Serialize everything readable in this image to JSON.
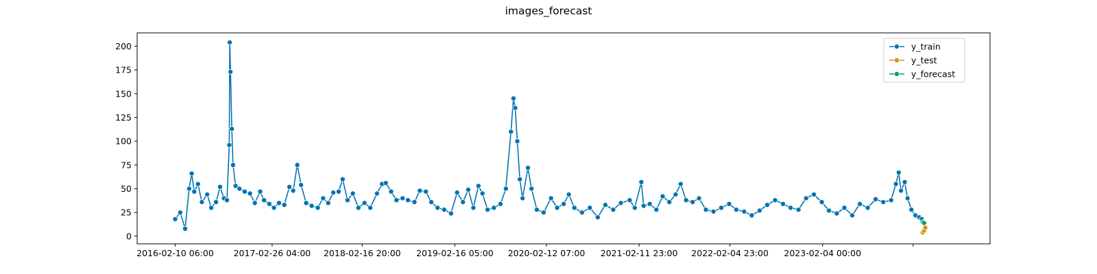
{
  "chart_data": {
    "type": "line",
    "title": "images_forecast",
    "xlabel": "",
    "ylabel": "",
    "ylim": [
      -8,
      214
    ],
    "xlim": [
      "2015-09-13",
      "2024-11-25"
    ],
    "grid": false,
    "legend_position": "top-right",
    "x_tick_labels": [
      {
        "label": "2016-02-10 06:00",
        "date": "2016-02-10"
      },
      {
        "label": "2017-02-26 04:00",
        "date": "2017-02-26"
      },
      {
        "label": "2018-02-16 20:00",
        "date": "2018-02-16"
      },
      {
        "label": "2019-02-16 05:00",
        "date": "2019-02-16"
      },
      {
        "label": "2020-02-12 07:00",
        "date": "2020-02-12"
      },
      {
        "label": "2021-02-11 23:00",
        "date": "2021-02-11"
      },
      {
        "label": "2022-02-04 23:00",
        "date": "2022-02-04"
      },
      {
        "label": "2023-02-04 00:00",
        "date": "2023-02-04"
      },
      {
        "label": "",
        "date": "2024-01-27"
      }
    ],
    "y_ticks": [
      0,
      25,
      50,
      75,
      100,
      125,
      150,
      175,
      200
    ],
    "series": [
      {
        "name": "y_train",
        "color": "#0173b2",
        "points": [
          [
            "2016-02-10",
            18
          ],
          [
            "2016-03-01",
            25
          ],
          [
            "2016-03-20",
            8
          ],
          [
            "2016-04-05",
            50
          ],
          [
            "2016-04-15",
            66
          ],
          [
            "2016-04-25",
            47
          ],
          [
            "2016-05-10",
            55
          ],
          [
            "2016-05-25",
            36
          ],
          [
            "2016-06-15",
            44
          ],
          [
            "2016-07-01",
            30
          ],
          [
            "2016-07-20",
            36
          ],
          [
            "2016-08-05",
            52
          ],
          [
            "2016-08-20",
            40
          ],
          [
            "2016-09-01",
            38
          ],
          [
            "2016-09-10",
            96
          ],
          [
            "2016-09-12",
            204
          ],
          [
            "2016-09-15",
            173
          ],
          [
            "2016-09-20",
            113
          ],
          [
            "2016-09-25",
            75
          ],
          [
            "2016-10-05",
            53
          ],
          [
            "2016-10-20",
            50
          ],
          [
            "2016-11-10",
            47
          ],
          [
            "2016-12-01",
            45
          ],
          [
            "2016-12-20",
            35
          ],
          [
            "2017-01-10",
            47
          ],
          [
            "2017-01-25",
            38
          ],
          [
            "2017-02-15",
            34
          ],
          [
            "2017-03-05",
            30
          ],
          [
            "2017-03-25",
            35
          ],
          [
            "2017-04-15",
            33
          ],
          [
            "2017-05-05",
            52
          ],
          [
            "2017-05-20",
            48
          ],
          [
            "2017-06-05",
            75
          ],
          [
            "2017-06-20",
            54
          ],
          [
            "2017-07-10",
            35
          ],
          [
            "2017-08-01",
            32
          ],
          [
            "2017-08-25",
            30
          ],
          [
            "2017-09-15",
            40
          ],
          [
            "2017-10-05",
            35
          ],
          [
            "2017-10-25",
            46
          ],
          [
            "2017-11-15",
            47
          ],
          [
            "2017-12-01",
            60
          ],
          [
            "2017-12-20",
            38
          ],
          [
            "2018-01-10",
            45
          ],
          [
            "2018-02-01",
            30
          ],
          [
            "2018-02-25",
            35
          ],
          [
            "2018-03-20",
            30
          ],
          [
            "2018-04-15",
            45
          ],
          [
            "2018-05-05",
            55
          ],
          [
            "2018-05-20",
            56
          ],
          [
            "2018-06-10",
            47
          ],
          [
            "2018-07-01",
            38
          ],
          [
            "2018-07-25",
            40
          ],
          [
            "2018-08-15",
            38
          ],
          [
            "2018-09-10",
            36
          ],
          [
            "2018-10-01",
            48
          ],
          [
            "2018-10-25",
            47
          ],
          [
            "2018-11-15",
            36
          ],
          [
            "2018-12-10",
            30
          ],
          [
            "2019-01-05",
            28
          ],
          [
            "2019-02-01",
            24
          ],
          [
            "2019-02-25",
            46
          ],
          [
            "2019-03-20",
            36
          ],
          [
            "2019-04-10",
            49
          ],
          [
            "2019-04-30",
            30
          ],
          [
            "2019-05-20",
            53
          ],
          [
            "2019-06-05",
            45
          ],
          [
            "2019-06-25",
            28
          ],
          [
            "2019-07-20",
            30
          ],
          [
            "2019-08-15",
            34
          ],
          [
            "2019-09-05",
            50
          ],
          [
            "2019-09-25",
            110
          ],
          [
            "2019-10-05",
            145
          ],
          [
            "2019-10-12",
            135
          ],
          [
            "2019-10-20",
            100
          ],
          [
            "2019-10-30",
            60
          ],
          [
            "2019-11-10",
            40
          ],
          [
            "2019-12-01",
            72
          ],
          [
            "2019-12-15",
            50
          ],
          [
            "2020-01-05",
            28
          ],
          [
            "2020-02-01",
            25
          ],
          [
            "2020-03-01",
            40
          ],
          [
            "2020-03-25",
            30
          ],
          [
            "2020-04-20",
            34
          ],
          [
            "2020-05-10",
            44
          ],
          [
            "2020-06-01",
            30
          ],
          [
            "2020-07-01",
            25
          ],
          [
            "2020-08-01",
            30
          ],
          [
            "2020-09-01",
            20
          ],
          [
            "2020-10-01",
            33
          ],
          [
            "2020-11-01",
            28
          ],
          [
            "2020-12-01",
            35
          ],
          [
            "2021-01-05",
            38
          ],
          [
            "2021-01-25",
            30
          ],
          [
            "2021-02-20",
            57
          ],
          [
            "2021-03-01",
            32
          ],
          [
            "2021-03-25",
            34
          ],
          [
            "2021-04-20",
            28
          ],
          [
            "2021-05-15",
            42
          ],
          [
            "2021-06-10",
            36
          ],
          [
            "2021-07-05",
            44
          ],
          [
            "2021-07-25",
            55
          ],
          [
            "2021-08-15",
            38
          ],
          [
            "2021-09-10",
            36
          ],
          [
            "2021-10-05",
            40
          ],
          [
            "2021-11-01",
            28
          ],
          [
            "2021-12-01",
            26
          ],
          [
            "2022-01-01",
            30
          ],
          [
            "2022-02-01",
            34
          ],
          [
            "2022-03-01",
            28
          ],
          [
            "2022-04-01",
            26
          ],
          [
            "2022-05-01",
            22
          ],
          [
            "2022-06-01",
            27
          ],
          [
            "2022-07-01",
            33
          ],
          [
            "2022-08-01",
            38
          ],
          [
            "2022-09-01",
            34
          ],
          [
            "2022-10-01",
            30
          ],
          [
            "2022-11-01",
            28
          ],
          [
            "2022-12-01",
            40
          ],
          [
            "2023-01-01",
            44
          ],
          [
            "2023-02-01",
            36
          ],
          [
            "2023-03-01",
            27
          ],
          [
            "2023-04-01",
            24
          ],
          [
            "2023-05-01",
            30
          ],
          [
            "2023-06-01",
            22
          ],
          [
            "2023-07-01",
            34
          ],
          [
            "2023-08-01",
            30
          ],
          [
            "2023-09-01",
            39
          ],
          [
            "2023-10-01",
            36
          ],
          [
            "2023-11-01",
            38
          ],
          [
            "2023-11-20",
            55
          ],
          [
            "2023-12-01",
            67
          ],
          [
            "2023-12-10",
            48
          ],
          [
            "2023-12-25",
            57
          ],
          [
            "2024-01-05",
            40
          ],
          [
            "2024-01-20",
            28
          ],
          [
            "2024-02-05",
            22
          ],
          [
            "2024-02-20",
            20
          ],
          [
            "2024-03-01",
            18
          ]
        ]
      },
      {
        "name": "y_test",
        "color": "#de8f05",
        "points": [
          [
            "2024-03-05",
            4
          ],
          [
            "2024-03-10",
            6
          ],
          [
            "2024-03-15",
            9
          ]
        ]
      },
      {
        "name": "y_forecast",
        "color": "#029e73",
        "points": [
          [
            "2024-03-05",
            15
          ],
          [
            "2024-03-10",
            14
          ]
        ]
      }
    ]
  }
}
